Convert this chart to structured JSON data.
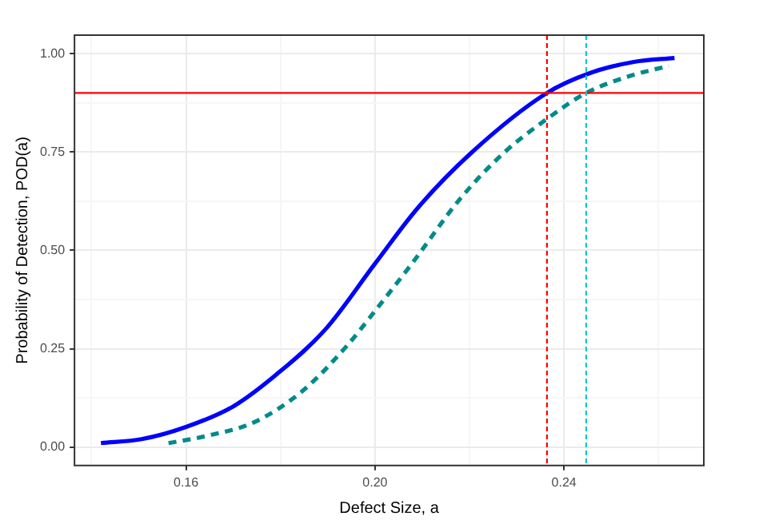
{
  "chart_data": {
    "type": "line",
    "xlabel": "Defect Size, a",
    "ylabel": "Probability of Detection, POD(a)",
    "xlim": [
      0.1364,
      0.2696
    ],
    "ylim": [
      -0.047,
      1.047
    ],
    "xticks": [
      {
        "value": 0.14,
        "label": null
      },
      0.16,
      {
        "value": 0.18,
        "label": null
      },
      {
        "value": 0.2,
        "label": "0.20"
      },
      {
        "value": 0.22,
        "label": null
      },
      0.24,
      {
        "value": 0.26,
        "label": null
      }
    ],
    "yticks": [
      {
        "value": 0,
        "label": "0.00"
      },
      {
        "value": 0.125,
        "label": null
      },
      {
        "value": 0.25,
        "label": "0.25"
      },
      {
        "value": 0.375,
        "label": null
      },
      {
        "value": 0.5,
        "label": "0.50"
      },
      {
        "value": 0.625,
        "label": null
      },
      {
        "value": 0.75,
        "label": "0.75"
      },
      {
        "value": 0.875,
        "label": null
      },
      {
        "value": 1,
        "label": "1.00"
      }
    ],
    "grid": true,
    "legend": false,
    "marker": "none",
    "series": [
      {
        "color": "#0000ff",
        "line_style": "solid",
        "x": [
          0.142,
          0.1506,
          0.16,
          0.1701,
          0.1792,
          0.1895,
          0.2,
          0.209,
          0.2204,
          0.2364,
          0.2456,
          0.2548,
          0.2634
        ],
        "values": [
          0.01,
          0.02,
          0.051,
          0.104,
          0.185,
          0.299,
          0.466,
          0.607,
          0.748,
          0.9,
          0.951,
          0.979,
          0.989
        ]
      },
      {
        "color": "#008b8b",
        "line_style": "dashed",
        "x": [
          0.1563,
          0.1643,
          0.1746,
          0.1849,
          0.1941,
          0.2004,
          0.2078,
          0.2181,
          0.2273,
          0.2364,
          0.2447,
          0.2536,
          0.2622
        ],
        "values": [
          0.01,
          0.028,
          0.064,
          0.145,
          0.258,
          0.352,
          0.466,
          0.632,
          0.748,
          0.834,
          0.9,
          0.942,
          0.969
        ]
      }
    ],
    "ref_lines": [
      {
        "axis": "y",
        "value": 0.9,
        "color": "#ff0000",
        "line_style": "solid"
      },
      {
        "axis": "x",
        "value": 0.2364,
        "color": "#ff0000",
        "line_style": "dashed"
      },
      {
        "axis": "x",
        "value": 0.2447,
        "color": "#00cdcd",
        "line_style": "dashed"
      }
    ]
  }
}
